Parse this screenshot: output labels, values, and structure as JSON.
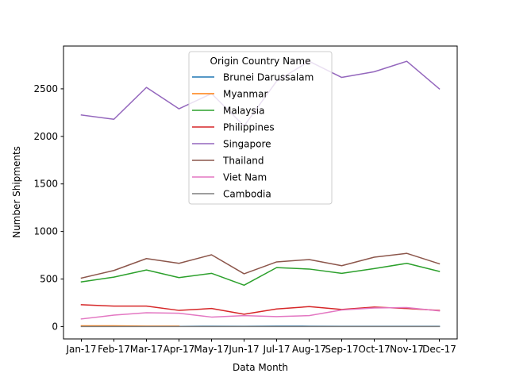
{
  "chart_data": {
    "type": "line",
    "xlabel": "Data Month",
    "ylabel": "Number Shipments",
    "categories": [
      "Jan-17",
      "Feb-17",
      "Mar-17",
      "Apr-17",
      "May-17",
      "Jun-17",
      "Jul-17",
      "Aug-17",
      "Sep-17",
      "Oct-17",
      "Nov-17",
      "Dec-17"
    ],
    "ylim": [
      -130,
      2950
    ],
    "yticks": [
      0,
      500,
      1000,
      1500,
      2000,
      2500
    ],
    "legend": {
      "title": "Origin Country Name",
      "placement": "upper center"
    },
    "grid": false,
    "series": [
      {
        "name": "Brunei Darussalam",
        "color": "#1f77b4",
        "values": [
          null,
          null,
          null,
          2,
          4,
          3,
          5,
          4,
          3,
          3,
          3,
          3
        ]
      },
      {
        "name": "Myanmar",
        "color": "#ff7f0e",
        "values": [
          8,
          8,
          5,
          5,
          null,
          null,
          null,
          null,
          null,
          null,
          null,
          null
        ]
      },
      {
        "name": "Malaysia",
        "color": "#2ca02c",
        "values": [
          470,
          520,
          595,
          515,
          560,
          435,
          620,
          605,
          560,
          610,
          665,
          580
        ]
      },
      {
        "name": "Philippines",
        "color": "#d62728",
        "values": [
          230,
          215,
          215,
          170,
          190,
          130,
          185,
          210,
          180,
          205,
          190,
          170
        ]
      },
      {
        "name": "Singapore",
        "color": "#9467bd",
        "values": [
          2225,
          2180,
          2515,
          2290,
          2450,
          2110,
          2580,
          2790,
          2620,
          2680,
          2790,
          2500
        ]
      },
      {
        "name": "Thailand",
        "color": "#8c564b",
        "values": [
          510,
          590,
          715,
          665,
          755,
          555,
          680,
          705,
          640,
          730,
          770,
          660
        ]
      },
      {
        "name": "Viet Nam",
        "color": "#e377c2",
        "values": [
          80,
          120,
          145,
          140,
          100,
          115,
          105,
          115,
          175,
          195,
          200,
          165
        ]
      },
      {
        "name": "Cambodia",
        "color": "#7f7f7f",
        "values": [
          0,
          0,
          0,
          0,
          0,
          0,
          0,
          0,
          0,
          0,
          0,
          0
        ]
      }
    ]
  }
}
